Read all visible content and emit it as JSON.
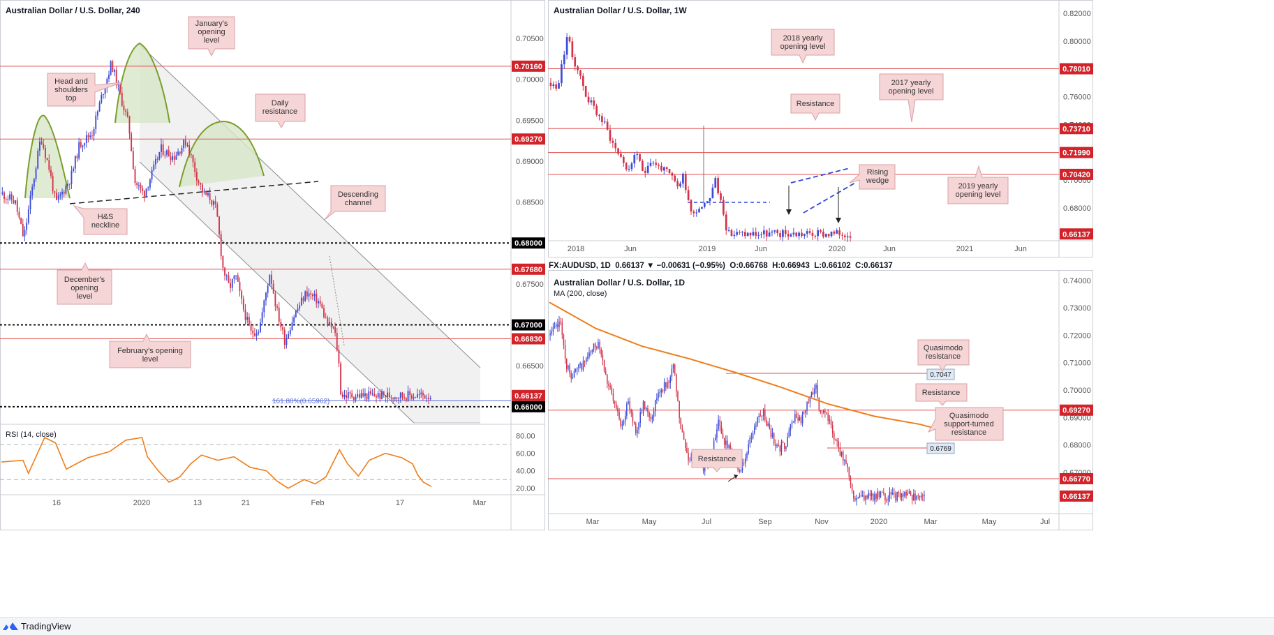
{
  "colors": {
    "red_line": "#e04f4f",
    "label_red": "#d2232a",
    "label_black": "#000000",
    "callout_fill": "#f6d5d6",
    "callout_stroke": "#d9a0a3",
    "up_candle": "#3d4bd8",
    "down_candle": "#d2344b",
    "ma_orange": "#ef7d19",
    "rsi_orange": "#ef7d19",
    "curve_green": "#7a9e2a",
    "blue_dash": "#3147d6"
  },
  "footer": {
    "brand": "TradingView"
  },
  "panels": {
    "h4": {
      "title": "Australian Dollar / U.S. Dollar, 240",
      "callouts": [
        "January's opening level",
        "Head and shoulders top",
        "Daily resistance",
        "Descending channel",
        "H&S neckline",
        "December's opening level",
        "February's opening level"
      ],
      "fib_label": "161.80%(0.65962)",
      "rsi_title": "RSI (14, close)",
      "price_labels": [
        {
          "text": "0.70160",
          "style": "red"
        },
        {
          "text": "0.69270",
          "style": "red"
        },
        {
          "text": "0.68000",
          "style": "black"
        },
        {
          "text": "0.67680",
          "style": "red"
        },
        {
          "text": "0.67000",
          "style": "black"
        },
        {
          "text": "0.66830",
          "style": "red"
        },
        {
          "text": "0.66137",
          "style": "red"
        },
        {
          "text": "0.66000",
          "style": "black"
        }
      ]
    },
    "weekly": {
      "title": "Australian Dollar / U.S. Dollar, 1W",
      "callouts": [
        "2018 yearly opening level",
        "2017 yearly opening level",
        "Resistance",
        "Rising wedge",
        "2019 yearly opening level"
      ],
      "price_labels": [
        {
          "text": "0.78010",
          "style": "red"
        },
        {
          "text": "0.73710",
          "style": "red"
        },
        {
          "text": "0.71990",
          "style": "red"
        },
        {
          "text": "0.70420",
          "style": "red"
        },
        {
          "text": "0.66137",
          "style": "red"
        }
      ]
    },
    "daily": {
      "title": "Australian Dollar / U.S. Dollar, 1D",
      "ma_title": "MA (200, close)",
      "header": "FX:AUDUSD, 1D  0.66137 ▼ −0.00631 (−0.95%)  O:0.66768  H:0.66943  L:0.66102  C:0.66137",
      "callouts": [
        "Quasimodo resistance",
        "Resistance",
        "Quasimodo support-turned resistance",
        "Resistance"
      ],
      "level_boxes": [
        "0.7047",
        "0.6769"
      ],
      "price_labels": [
        {
          "text": "0.69270",
          "style": "red"
        },
        {
          "text": "0.66770",
          "style": "red"
        },
        {
          "text": "0.66137",
          "style": "red"
        }
      ]
    }
  },
  "chart_data": [
    {
      "type": "candlestick",
      "title": "Australian Dollar / U.S. Dollar, 240",
      "timeframe": "240",
      "y_ticks": [
        "0.70500",
        "0.70000",
        "0.69500",
        "0.69000",
        "0.68500",
        "0.68000",
        "0.67500",
        "0.67000",
        "0.66500",
        "0.66000"
      ],
      "ylim": [
        0.6582,
        0.709
      ],
      "x_ticks": [
        "16",
        "2020",
        "13",
        "21",
        "Feb",
        "17",
        "Mar"
      ],
      "close_path": [
        {
          "x": 0,
          "y": 0.686
        },
        {
          "x": 0.03,
          "y": 0.685
        },
        {
          "x": 0.05,
          "y": 0.6805
        },
        {
          "x": 0.09,
          "y": 0.693
        },
        {
          "x": 0.11,
          "y": 0.689
        },
        {
          "x": 0.125,
          "y": 0.6848
        },
        {
          "x": 0.16,
          "y": 0.688
        },
        {
          "x": 0.18,
          "y": 0.692
        },
        {
          "x": 0.21,
          "y": 0.6935
        },
        {
          "x": 0.235,
          "y": 0.6985
        },
        {
          "x": 0.255,
          "y": 0.702
        },
        {
          "x": 0.27,
          "y": 0.699
        },
        {
          "x": 0.295,
          "y": 0.6945
        },
        {
          "x": 0.31,
          "y": 0.6875
        },
        {
          "x": 0.33,
          "y": 0.686
        },
        {
          "x": 0.35,
          "y": 0.6885
        },
        {
          "x": 0.37,
          "y": 0.6915
        },
        {
          "x": 0.4,
          "y": 0.6905
        },
        {
          "x": 0.43,
          "y": 0.6925
        },
        {
          "x": 0.455,
          "y": 0.688
        },
        {
          "x": 0.47,
          "y": 0.686
        },
        {
          "x": 0.485,
          "y": 0.6855
        },
        {
          "x": 0.5,
          "y": 0.684
        },
        {
          "x": 0.515,
          "y": 0.677
        },
        {
          "x": 0.53,
          "y": 0.6745
        },
        {
          "x": 0.545,
          "y": 0.676
        },
        {
          "x": 0.56,
          "y": 0.6725
        },
        {
          "x": 0.58,
          "y": 0.669
        },
        {
          "x": 0.6,
          "y": 0.6695
        },
        {
          "x": 0.625,
          "y": 0.6765
        },
        {
          "x": 0.64,
          "y": 0.672
        },
        {
          "x": 0.66,
          "y": 0.668
        },
        {
          "x": 0.68,
          "y": 0.671
        },
        {
          "x": 0.71,
          "y": 0.674
        },
        {
          "x": 0.74,
          "y": 0.6728
        },
        {
          "x": 0.76,
          "y": 0.67
        },
        {
          "x": 0.775,
          "y": 0.6695
        },
        {
          "x": 0.785,
          "y": 0.666
        },
        {
          "x": 0.79,
          "y": 0.662
        },
        {
          "x": 0.795,
          "y": 0.66137
        }
      ],
      "horizontal_levels": [
        0.7016,
        0.6927,
        0.68,
        0.6768,
        0.67,
        0.6683,
        0.66
      ],
      "fibonacci_extension": {
        "ratio": "161.80%",
        "price": 0.65962
      },
      "rsi": {
        "title": "RSI (14, close)",
        "y_ticks": [
          "80.00",
          "60.00",
          "40.00",
          "20.00"
        ],
        "ylim": [
          15,
          90
        ],
        "bands": [
          70,
          30
        ],
        "values": [
          {
            "x": 0,
            "y": 50
          },
          {
            "x": 0.04,
            "y": 52
          },
          {
            "x": 0.05,
            "y": 37
          },
          {
            "x": 0.08,
            "y": 78
          },
          {
            "x": 0.1,
            "y": 72
          },
          {
            "x": 0.12,
            "y": 42
          },
          {
            "x": 0.16,
            "y": 55
          },
          {
            "x": 0.2,
            "y": 62
          },
          {
            "x": 0.23,
            "y": 75
          },
          {
            "x": 0.26,
            "y": 78
          },
          {
            "x": 0.27,
            "y": 56
          },
          {
            "x": 0.29,
            "y": 40
          },
          {
            "x": 0.31,
            "y": 27
          },
          {
            "x": 0.33,
            "y": 33
          },
          {
            "x": 0.35,
            "y": 48
          },
          {
            "x": 0.37,
            "y": 58
          },
          {
            "x": 0.4,
            "y": 52
          },
          {
            "x": 0.43,
            "y": 56
          },
          {
            "x": 0.46,
            "y": 44
          },
          {
            "x": 0.49,
            "y": 40
          },
          {
            "x": 0.51,
            "y": 28
          },
          {
            "x": 0.53,
            "y": 20
          },
          {
            "x": 0.56,
            "y": 30
          },
          {
            "x": 0.58,
            "y": 25
          },
          {
            "x": 0.6,
            "y": 33
          },
          {
            "x": 0.625,
            "y": 64
          },
          {
            "x": 0.64,
            "y": 48
          },
          {
            "x": 0.66,
            "y": 34
          },
          {
            "x": 0.68,
            "y": 52
          },
          {
            "x": 0.71,
            "y": 60
          },
          {
            "x": 0.74,
            "y": 55
          },
          {
            "x": 0.76,
            "y": 48
          },
          {
            "x": 0.77,
            "y": 35
          },
          {
            "x": 0.78,
            "y": 27
          },
          {
            "x": 0.795,
            "y": 22
          }
        ]
      }
    },
    {
      "type": "candlestick",
      "title": "Australian Dollar / U.S. Dollar, 1W",
      "timeframe": "1W",
      "y_ticks": [
        "0.82000",
        "0.80000",
        "0.78000",
        "0.76000",
        "0.74000",
        "0.72000",
        "0.70000",
        "0.68000"
      ],
      "ylim": [
        0.659,
        0.8245
      ],
      "x_ticks": [
        "2018",
        "Jun",
        "2019",
        "Jun",
        "2020",
        "Jun",
        "2021",
        "Jun"
      ],
      "close_path": [
        {
          "x": 0,
          "y": 0.77
        },
        {
          "x": 0.02,
          "y": 0.765
        },
        {
          "x": 0.035,
          "y": 0.78
        },
        {
          "x": 0.055,
          "y": 0.805
        },
        {
          "x": 0.07,
          "y": 0.79
        },
        {
          "x": 0.09,
          "y": 0.78
        },
        {
          "x": 0.12,
          "y": 0.76
        },
        {
          "x": 0.15,
          "y": 0.75
        },
        {
          "x": 0.18,
          "y": 0.74
        },
        {
          "x": 0.21,
          "y": 0.725
        },
        {
          "x": 0.24,
          "y": 0.715
        },
        {
          "x": 0.26,
          "y": 0.705
        },
        {
          "x": 0.28,
          "y": 0.72
        },
        {
          "x": 0.3,
          "y": 0.71
        },
        {
          "x": 0.31,
          "y": 0.705
        },
        {
          "x": 0.33,
          "y": 0.715
        },
        {
          "x": 0.36,
          "y": 0.71
        },
        {
          "x": 0.39,
          "y": 0.705
        },
        {
          "x": 0.41,
          "y": 0.7
        },
        {
          "x": 0.43,
          "y": 0.695
        },
        {
          "x": 0.44,
          "y": 0.705
        },
        {
          "x": 0.46,
          "y": 0.687
        },
        {
          "x": 0.47,
          "y": 0.676
        },
        {
          "x": 0.49,
          "y": 0.68
        },
        {
          "x": 0.51,
          "y": 0.683
        },
        {
          "x": 0.53,
          "y": 0.688
        },
        {
          "x": 0.55,
          "y": 0.7
        },
        {
          "x": 0.56,
          "y": 0.69
        },
        {
          "x": 0.575,
          "y": 0.68
        },
        {
          "x": 0.59,
          "y": 0.66137
        }
      ],
      "horizontal_levels": [
        0.7801,
        0.7371,
        0.7199,
        0.7042
      ],
      "support_line": 0.677
    },
    {
      "type": "candlestick",
      "title": "Australian Dollar / U.S. Dollar, 1D",
      "timeframe": "1D",
      "y_ticks": [
        "0.74000",
        "0.73000",
        "0.72000",
        "0.71000",
        "0.70000",
        "0.69000",
        "0.68000",
        "0.67000"
      ],
      "ylim": [
        0.656,
        0.7425
      ],
      "x_ticks": [
        "Mar",
        "May",
        "Jul",
        "Sep",
        "Nov",
        "2020",
        "Mar",
        "May",
        "Jul"
      ],
      "ohlc_last": {
        "open": 0.66768,
        "high": 0.66943,
        "low": 0.66102,
        "close": 0.66137,
        "change": -0.00631,
        "change_pct": -0.95
      },
      "close_path": [
        {
          "x": 0,
          "y": 0.72
        },
        {
          "x": 0.03,
          "y": 0.725
        },
        {
          "x": 0.04,
          "y": 0.71
        },
        {
          "x": 0.06,
          "y": 0.705
        },
        {
          "x": 0.09,
          "y": 0.71
        },
        {
          "x": 0.13,
          "y": 0.718
        },
        {
          "x": 0.15,
          "y": 0.705
        },
        {
          "x": 0.17,
          "y": 0.695
        },
        {
          "x": 0.19,
          "y": 0.688
        },
        {
          "x": 0.21,
          "y": 0.695
        },
        {
          "x": 0.23,
          "y": 0.685
        },
        {
          "x": 0.25,
          "y": 0.695
        },
        {
          "x": 0.27,
          "y": 0.69
        },
        {
          "x": 0.29,
          "y": 0.7
        },
        {
          "x": 0.31,
          "y": 0.702
        },
        {
          "x": 0.33,
          "y": 0.708
        },
        {
          "x": 0.35,
          "y": 0.685
        },
        {
          "x": 0.37,
          "y": 0.675
        },
        {
          "x": 0.39,
          "y": 0.678
        },
        {
          "x": 0.41,
          "y": 0.672
        },
        {
          "x": 0.43,
          "y": 0.675
        },
        {
          "x": 0.45,
          "y": 0.688
        },
        {
          "x": 0.47,
          "y": 0.68
        },
        {
          "x": 0.49,
          "y": 0.676
        },
        {
          "x": 0.51,
          "y": 0.67
        },
        {
          "x": 0.53,
          "y": 0.68
        },
        {
          "x": 0.55,
          "y": 0.688
        },
        {
          "x": 0.57,
          "y": 0.692
        },
        {
          "x": 0.59,
          "y": 0.684
        },
        {
          "x": 0.61,
          "y": 0.679
        },
        {
          "x": 0.63,
          "y": 0.68
        },
        {
          "x": 0.65,
          "y": 0.69
        },
        {
          "x": 0.67,
          "y": 0.689
        },
        {
          "x": 0.69,
          "y": 0.695
        },
        {
          "x": 0.71,
          "y": 0.703
        },
        {
          "x": 0.72,
          "y": 0.693
        },
        {
          "x": 0.74,
          "y": 0.69
        },
        {
          "x": 0.76,
          "y": 0.683
        },
        {
          "x": 0.78,
          "y": 0.676
        },
        {
          "x": 0.79,
          "y": 0.672
        },
        {
          "x": 0.8,
          "y": 0.669
        },
        {
          "x": 0.81,
          "y": 0.66137
        }
      ],
      "moving_average": {
        "name": "MA (200, close)",
        "values": [
          {
            "x": 0,
            "y": 0.732
          },
          {
            "x": 0.1,
            "y": 0.7225
          },
          {
            "x": 0.2,
            "y": 0.716
          },
          {
            "x": 0.3,
            "y": 0.7115
          },
          {
            "x": 0.4,
            "y": 0.7065
          },
          {
            "x": 0.5,
            "y": 0.701
          },
          {
            "x": 0.6,
            "y": 0.695
          },
          {
            "x": 0.7,
            "y": 0.6905
          },
          {
            "x": 0.8,
            "y": 0.6875
          },
          {
            "x": 0.85,
            "y": 0.6852
          }
        ]
      },
      "horizontal_levels": [
        0.6927,
        0.6677
      ],
      "level_boxes": [
        0.7047,
        0.6769
      ]
    }
  ]
}
